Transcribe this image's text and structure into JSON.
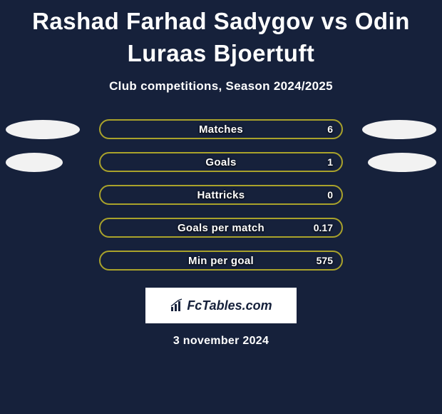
{
  "title": "Rashad Farhad Sadygov vs Odin Luraas Bjoertuft",
  "subtitle": "Club competitions, Season 2024/2025",
  "date": "3 november 2024",
  "logo_text": "FcTables.com",
  "colors": {
    "background": "#16213b",
    "pill_border": "#a9a22b",
    "pill_fill": "#a9a22b",
    "oval": "#f2f2f2",
    "text": "#ffffff"
  },
  "rows": [
    {
      "label": "Matches",
      "value": "6",
      "show_left_oval": true,
      "show_right_oval": true,
      "oval_left_w": 104,
      "oval_right_w": 104,
      "fill_pct": 0
    },
    {
      "label": "Goals",
      "value": "1",
      "show_left_oval": true,
      "show_right_oval": true,
      "oval_left_w": 80,
      "oval_right_w": 96,
      "fill_pct": 0
    },
    {
      "label": "Hattricks",
      "value": "0",
      "show_left_oval": false,
      "show_right_oval": false,
      "fill_pct": 0
    },
    {
      "label": "Goals per match",
      "value": "0.17",
      "show_left_oval": false,
      "show_right_oval": false,
      "fill_pct": 0
    },
    {
      "label": "Min per goal",
      "value": "575",
      "show_left_oval": false,
      "show_right_oval": false,
      "fill_pct": 0
    }
  ]
}
